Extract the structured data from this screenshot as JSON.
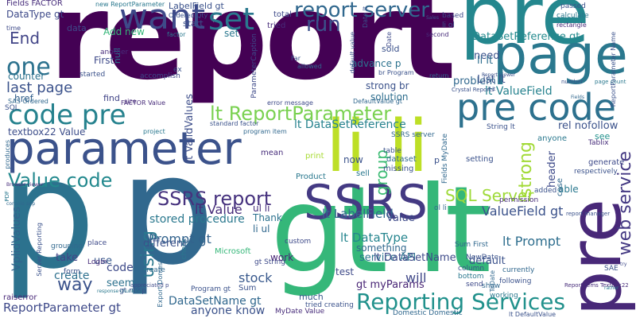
{
  "words": [
    "report",
    "pre",
    "p",
    "gt lt",
    "li li",
    "parameter",
    "page",
    "SSRS",
    "pre code",
    "SSRS report",
    "want",
    "set",
    "report server",
    "one",
    "lt ReportParameter",
    "code pre",
    "Reporting Services",
    "Value code",
    "run",
    "End",
    "last page",
    "pre",
    "web service",
    "SQL Server",
    "lt DataSetReference",
    "lt Value",
    "ReportParameter gt",
    "DataSetName gt",
    "anyone know",
    "using",
    "way",
    "lt LabelField",
    "lt DataType",
    "Prompt gt",
    "stored procedure",
    "create",
    "stock",
    "will",
    "lt Prompt",
    "ValueField gt",
    "lt ValueField",
    "strong",
    "group",
    "need",
    "code",
    "DataSetReference gt",
    "DataType gt",
    "Add new",
    "First",
    "counter",
    "href",
    "textbox22 Value",
    "VplidValues",
    "gt myParams",
    "service API",
    "Thank",
    "lt DataSetName",
    "strong br",
    "solution",
    "li ul",
    "li lt",
    "rel nofollow",
    "header",
    "now",
    "Value",
    "default",
    "able",
    "lt ValidValues",
    "Fields FACTOR",
    "LabelField gt",
    "total",
    "tried",
    "advance p",
    "sold",
    "problem",
    "List lt",
    "see",
    "seem",
    "take",
    "use",
    "different",
    "work",
    "something",
    "test",
    "much",
    "Sum",
    "Microsoft",
    "mean",
    "setting",
    "dataset",
    "missing",
    "sell",
    "print",
    "Product",
    "raiserror",
    "start",
    "data",
    "find",
    "null",
    "ul li",
    "set",
    "p",
    "ParameterCaption",
    "another",
    "started",
    "accomplish",
    "factor",
    "grouping",
    "place",
    "Login",
    "form",
    "li Create",
    "gt nbsp",
    "check",
    "Program gt",
    "Domestic Domestic",
    "MyDate Value",
    "gt String",
    "tried creating",
    "working",
    "currently",
    "following",
    "permission",
    "added",
    "Sum First",
    "column",
    "bottom",
    "send",
    "show",
    "NewDate",
    "generate",
    "respectively",
    "case",
    "anyone",
    "Tablix",
    "String lt",
    "SSRS server",
    "table",
    "error message",
    "program item",
    "standard factor",
    "FACTOR Value",
    "project",
    "default value",
    "return",
    "based",
    "passed",
    "calculate",
    "Fields MyDate",
    "SAE",
    "rectangle",
    "li ol",
    "ol li",
    "custom",
    "ReportParameter Name",
    "page count",
    "SAS Ordered",
    "SQL",
    "size",
    "ex",
    "produces",
    "PDF",
    "time",
    "br Program",
    "allowed",
    "Far",
    "second",
    "Crystal Reports",
    "ToDate",
    "Date",
    "Date lt",
    "new ReportParameter",
    "Ordered Qty",
    "DefaultValue gt",
    "report manager",
    "ReportItems Textbox22",
    "lt DefaultValue",
    "Export Domestic",
    "appreciated p",
    "Server Reporting",
    "response chunking",
    "li lt",
    "console app",
    "Browser viewer",
    "Report Viewer",
    "Fields",
    "number",
    "rather",
    "try",
    "Sales",
    "ReportParameter gt"
  ]
}
